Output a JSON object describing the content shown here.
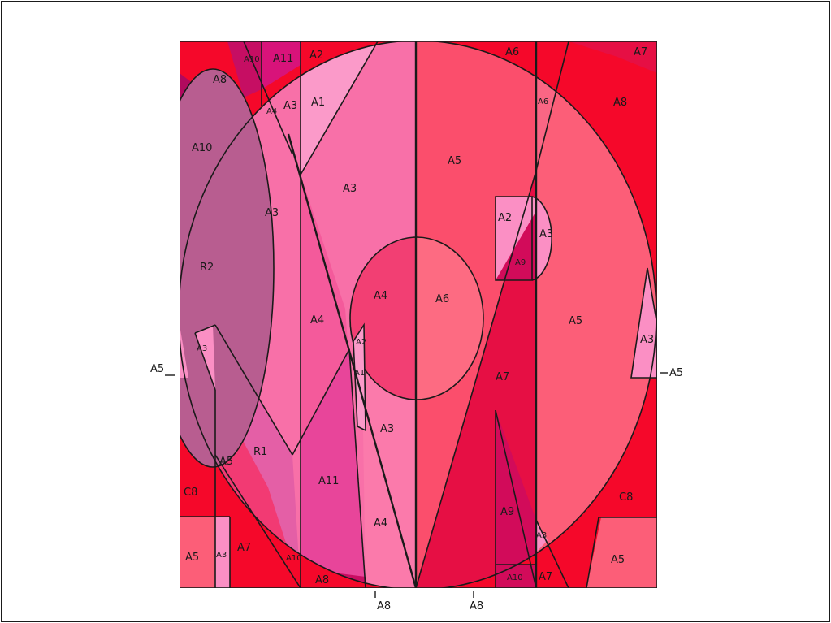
{
  "labels": {
    "a10_top": "A10",
    "a11_top": "A11",
    "a2_top": "A2",
    "a6_top": "A6",
    "a7_top": "A7",
    "a8_topleft": "A8",
    "a8_topright": "A8",
    "a4_small_top": "A4",
    "a3_small_top": "A3",
    "a1_top": "A1",
    "a6_small_right": "A6",
    "a10_left": "A10",
    "a3_left": "A3",
    "a3_center": "A3",
    "a5_upper": "A5",
    "r2": "R2",
    "a2_small": "A2",
    "a3_small_right": "A3",
    "a9_small": "A9",
    "a4_left": "A4",
    "a4_center": "A4",
    "a6_center": "A6",
    "a5_right": "A5",
    "a2_narrow": "A2",
    "a1_narrow": "A1",
    "a3_far_left": "A3",
    "a3_far_right": "A3",
    "a7_center": "A7",
    "r1": "R1",
    "a3_lower": "A3",
    "a5_lower_left": "A5",
    "a11_lower": "A11",
    "c8_left": "C8",
    "c8_right": "C8",
    "a9_lower": "A9",
    "a4_lower": "A4",
    "a5_bottom_left": "A5",
    "a3_bottom_left": "A3",
    "a7_bottom_left": "A7",
    "a10_tiny": "A10",
    "a8_bottom": "A8",
    "a3_bottom_right": "A3",
    "a10_bottom": "A10",
    "a7_bottom_right": "A7",
    "a5_bottom_right": "A5",
    "a5_outside_left": "A5",
    "a5_outside_right": "A5",
    "a8_below_left": "A8",
    "a8_below_right": "A8"
  },
  "colors": {
    "red": "#f5082a",
    "pink_light": "#fb8fc4",
    "pink_mid": "#f870a8",
    "pink_hot": "#e8459a",
    "coral": "#f74a6b",
    "crimson": "#e60f44",
    "magenta_dark": "#b0095e",
    "mauve": "#b85d90",
    "rose": "#fc5e78",
    "fuchsia": "#d8137a"
  }
}
